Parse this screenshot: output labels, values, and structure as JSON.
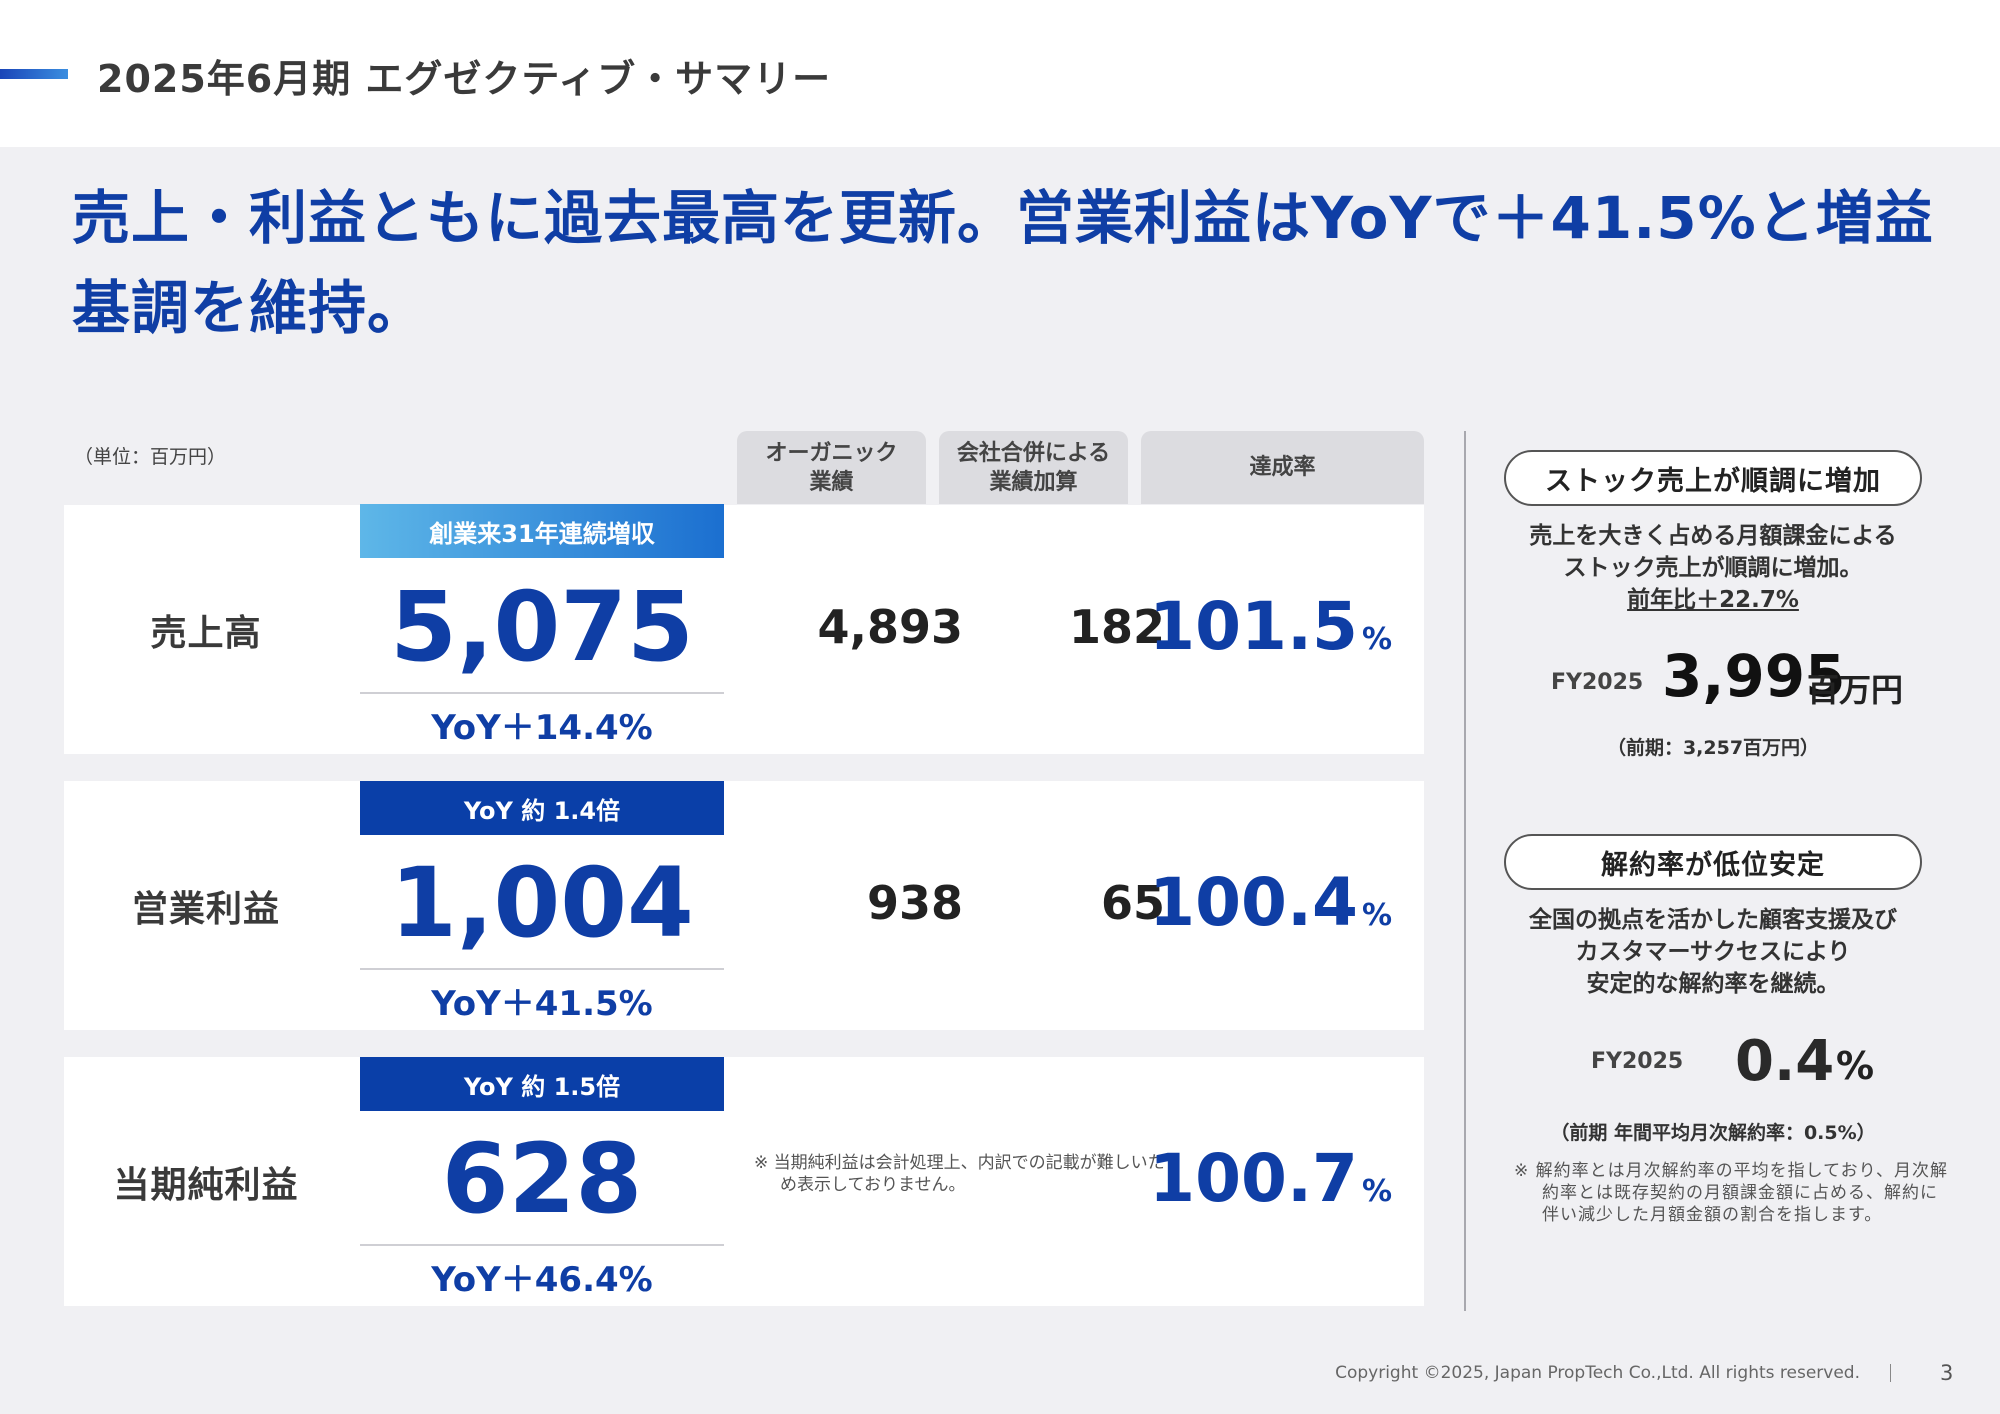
{
  "header": {
    "title": "2025年6月期  エグゼクティブ・サマリー"
  },
  "headline": "売上・利益ともに過去最高を更新。営業利益はYoYで＋41.5%と増益基調を維持。",
  "table": {
    "unit_label": "（単位：百万円）",
    "columns": {
      "organic": "オーガニック\n業績",
      "merger": "会社合併による\n業績加算",
      "achievement": "達成率"
    },
    "rows": [
      {
        "label": "売上高",
        "badge": "創業来31年連続増収",
        "value": "5,075",
        "yoy": "YoY＋14.4%",
        "organic": "4,893",
        "merger": "182",
        "rate": "101.5",
        "rate_unit": "%"
      },
      {
        "label": "営業利益",
        "badge": "YoY 約 1.4倍",
        "value": "1,004",
        "yoy": "YoY＋41.5%",
        "organic": "938",
        "merger": "65",
        "rate": "100.4",
        "rate_unit": "%"
      },
      {
        "label": "当期純利益",
        "badge": "YoY 約 1.5倍",
        "value": "628",
        "yoy": "YoY＋46.4%",
        "note": "※ 当期純利益は会計処理上、内訳での記載が難しいため表示しておりません。",
        "rate": "100.7",
        "rate_unit": "%"
      }
    ]
  },
  "side": {
    "stock": {
      "pill": "ストック売上が順調に増加",
      "line1": "売上を大きく占める月額課金による",
      "line2": "ストック売上が順調に増加。",
      "line3": "前年比＋22.7%",
      "fy_label": "FY2025",
      "value": "3,995",
      "unit": "百万円",
      "prev": "（前期：3,257百万円）"
    },
    "churn": {
      "pill": "解約率が低位安定",
      "line1": "全国の拠点を活かした顧客支援及び",
      "line2": "カスタマーサクセスにより",
      "line3": "安定的な解約率を継続。",
      "fy_label": "FY2025",
      "value": "0.4",
      "unit": "%",
      "prev": "（前期 年間平均月次解約率：0.5%）",
      "note": "※ 解約率とは月次解約率の平均を指しており、月次解約率とは既存契約の月額課金額に占める、解約に伴い減少した月額金額の割合を指します。"
    }
  },
  "footer": {
    "copyright": "Copyright ©2025, Japan PropTech Co.,Ltd. All rights reserved.",
    "page": "3"
  }
}
